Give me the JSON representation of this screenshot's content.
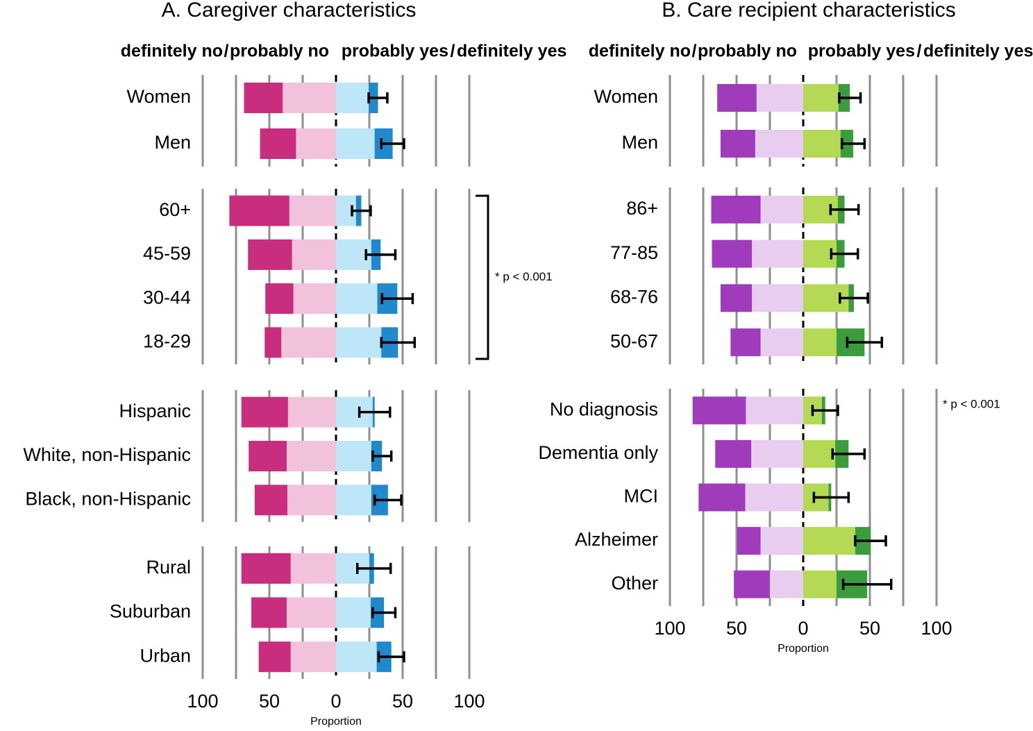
{
  "chart_data": [
    {
      "type": "diverging-bar",
      "title": "A. Caregiver characteristics",
      "xlabel": "Proportion",
      "legend_separator": "/",
      "xlim": [
        -100,
        100
      ],
      "xticks": [
        {
          "value": -100,
          "label": "100"
        },
        {
          "value": -50,
          "label": "50"
        },
        0,
        50,
        100
      ],
      "minor_xticks": [
        -75,
        -25,
        25,
        75
      ],
      "series": [
        {
          "name": "definitely no",
          "color": "#c92d7e",
          "label_color": "#c92d7e"
        },
        {
          "name": "probably no",
          "color": "#f2c1dc",
          "label_color": "#f0a3cf"
        },
        {
          "name": "probably yes",
          "color": "#bde6f8",
          "label_color": "#7fd0ee"
        },
        {
          "name": "definitely yes",
          "color": "#2188cb",
          "label_color": "#2188cb"
        }
      ],
      "groups": [
        {
          "categories": [
            "Women",
            "Men"
          ],
          "values": [
            [
              -29,
              -27
            ],
            [
              -40,
              -30
            ],
            [
              24.5,
              29
            ],
            [
              7,
              13.5
            ]
          ],
          "errors": [
            7,
            8.5
          ]
        },
        {
          "categories": [
            "60+",
            "45-59",
            "30-44",
            "18-29"
          ],
          "values": [
            [
              -45,
              -33,
              -21,
              -12.5
            ],
            [
              -35,
              -33,
              -32,
              -41
            ],
            [
              15,
              26.5,
              31,
              34
            ],
            [
              4,
              7,
              15,
              12.5
            ]
          ],
          "errors": [
            7,
            11,
            11.5,
            12.5
          ],
          "annotation": "* p < 0.001",
          "bracket": true
        },
        {
          "categories": [
            "Hispanic",
            "White, non-Hispanic",
            "Black, non-Hispanic"
          ],
          "values": [
            [
              -35,
              -28.5,
              -24.5
            ],
            [
              -36,
              -37,
              -36.5
            ],
            [
              27.5,
              26.5,
              26.5
            ],
            [
              1.5,
              8,
              12.5
            ]
          ],
          "errors": [
            11.5,
            7,
            10
          ]
        },
        {
          "categories": [
            "Rural",
            "Suburban",
            "Urban"
          ],
          "values": [
            [
              -37,
              -26.5,
              -24
            ],
            [
              -34,
              -37,
              -34
            ],
            [
              25,
              26,
              30.5
            ],
            [
              3.5,
              10,
              11
            ]
          ],
          "errors": [
            12.5,
            8.5,
            9.5
          ]
        }
      ]
    },
    {
      "type": "diverging-bar",
      "title": "B. Care recipient characteristics",
      "xlabel": "Proportion",
      "legend_separator": "/",
      "xlim": [
        -100,
        100
      ],
      "xticks": [
        {
          "value": -100,
          "label": "100"
        },
        {
          "value": -50,
          "label": "50"
        },
        0,
        50,
        100
      ],
      "minor_xticks": [
        -75,
        -25,
        25,
        75
      ],
      "series": [
        {
          "name": "definitely no",
          "color": "#a03cbb",
          "label_color": "#a03cbb"
        },
        {
          "name": "probably no",
          "color": "#e8cdf0",
          "label_color": "#e3a4ee"
        },
        {
          "name": "probably yes",
          "color": "#b4da55",
          "label_color": "#a6d344"
        },
        {
          "name": "definitely yes",
          "color": "#3a9c3c",
          "label_color": "#3a9c3c"
        }
      ],
      "groups": [
        {
          "categories": [
            "Women",
            "Men"
          ],
          "values": [
            [
              -29.5,
              -26
            ],
            [
              -35,
              -36
            ],
            [
              26.5,
              28
            ],
            [
              8.5,
              9.5
            ]
          ],
          "errors": [
            8,
            8.5
          ]
        },
        {
          "categories": [
            "86+",
            "77-85",
            "68-76",
            "50-67"
          ],
          "values": [
            [
              -37,
              -30,
              -23.5,
              -22.5
            ],
            [
              -32,
              -38.5,
              -38.5,
              -32
            ],
            [
              26,
              25,
              34,
              25
            ],
            [
              5,
              6,
              4,
              21
            ]
          ],
          "errors": [
            10.5,
            10,
            10.5,
            13
          ]
        },
        {
          "categories": [
            "No diagnosis",
            "Dementia only",
            "MCI",
            "Alzheimer",
            "Other"
          ],
          "values": [
            [
              -40,
              -27,
              -35,
              -17.5,
              -27
            ],
            [
              -43,
              -39,
              -43.5,
              -32,
              -25
            ],
            [
              14,
              24,
              19,
              39,
              25
            ],
            [
              2.5,
              10,
              2,
              11.5,
              23
            ]
          ],
          "errors": [
            9.5,
            12,
            13,
            11.5,
            18
          ],
          "annotation": "* p < 0.001",
          "bracket": false
        }
      ]
    }
  ]
}
